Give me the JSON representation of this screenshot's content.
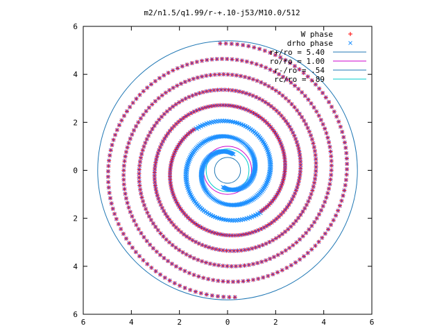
{
  "chart_data": {
    "type": "scatter",
    "title": "m2/n1.5/q1.99/r-+.10-j53/M10.0/512",
    "xlabel": "",
    "ylabel": "",
    "xlim": [
      -6,
      6
    ],
    "ylim": [
      -6,
      6
    ],
    "xticks": [
      "6",
      "4",
      "2",
      "0",
      "2",
      "4",
      "6"
    ],
    "yticks": [
      "6",
      "4",
      "2",
      "0",
      "2",
      "4",
      "6"
    ],
    "grid": false,
    "legend_position": "top-right",
    "series": [
      {
        "name": "W phase",
        "kind": "points",
        "marker": "+",
        "color": "#ff0000",
        "description_arms": 2
      },
      {
        "name": "drho phase",
        "kind": "points",
        "marker": "x",
        "color": "#1e90ff",
        "description_arms": 2
      },
      {
        "name": "r+/ro = 5.40",
        "kind": "circle",
        "radius": 5.4,
        "color": "#1f77b4"
      },
      {
        "name": "ro/ro = 1.00",
        "kind": "circle",
        "radius": 1.0,
        "color": "#cc00cc"
      },
      {
        "name": "r-/ro = .54",
        "kind": "circle",
        "radius": 0.54,
        "color": "#1f77b4"
      },
      {
        "name": "rc/ro = .89",
        "kind": "circle",
        "radius": 0.89,
        "color": "#00cccc"
      }
    ]
  }
}
